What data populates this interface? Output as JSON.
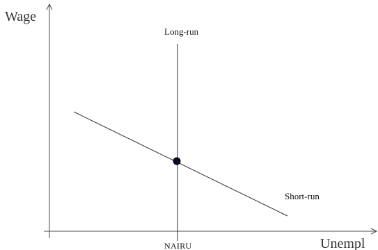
{
  "diagram": {
    "y_axis_title": "Wage",
    "x_axis_title": "Unempl",
    "long_run_label": "Long-run",
    "short_run_label": "Short-run",
    "nairu_label": "NAIRU",
    "colors": {
      "axis": "#4a4a4a",
      "curve": "#2f2f2f",
      "dot": "#070b2a"
    }
  }
}
